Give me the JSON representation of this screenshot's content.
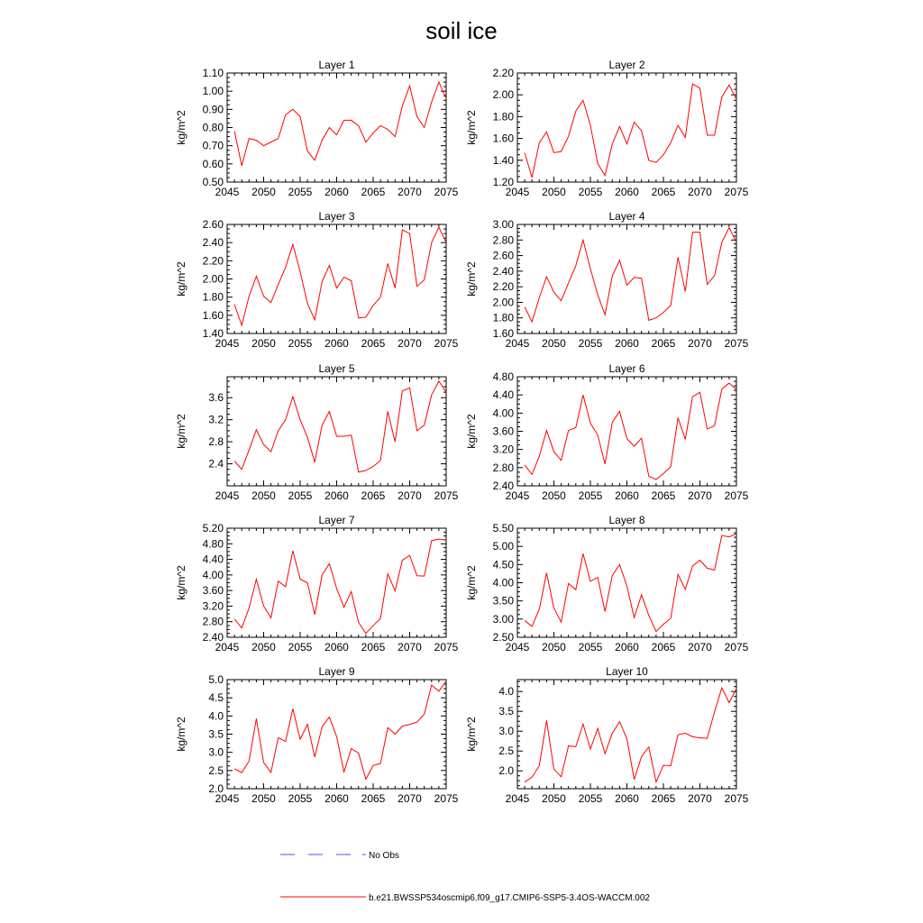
{
  "title": "soil ice",
  "colors": {
    "model": "#ff0000",
    "obs": "#4a4aff"
  },
  "legend": {
    "obs_label": "No Obs",
    "model_label": "b.e21.BWSSP534oscmip6.f09_g17.CMIP6-SSP5-3.4OS-WACCM.002"
  },
  "chart_data": {
    "type": "line",
    "x": [
      2046,
      2047,
      2048,
      2049,
      2050,
      2051,
      2052,
      2053,
      2054,
      2055,
      2056,
      2057,
      2058,
      2059,
      2060,
      2061,
      2062,
      2063,
      2064,
      2065,
      2066,
      2067,
      2068,
      2069,
      2070,
      2071,
      2072,
      2073,
      2074,
      2075
    ],
    "xlim": [
      2045,
      2075
    ],
    "xticks": [
      "2045",
      "2050",
      "2055",
      "2060",
      "2065",
      "2070",
      "2075"
    ],
    "panels": [
      {
        "title": "Layer 1",
        "ylabel": "kg/m^2",
        "ylim": [
          0.5,
          1.1
        ],
        "yticks": [
          "0.50",
          "0.60",
          "0.70",
          "0.80",
          "0.90",
          "1.00",
          "1.10"
        ],
        "values": [
          0.78,
          0.59,
          0.74,
          0.73,
          0.7,
          0.72,
          0.74,
          0.87,
          0.9,
          0.86,
          0.67,
          0.62,
          0.73,
          0.8,
          0.76,
          0.84,
          0.84,
          0.81,
          0.72,
          0.77,
          0.81,
          0.79,
          0.75,
          0.92,
          1.03,
          0.86,
          0.8,
          0.94,
          1.05,
          0.96
        ]
      },
      {
        "title": "Layer 2",
        "ylabel": "kg/m^2",
        "ylim": [
          1.2,
          2.2
        ],
        "yticks": [
          "1.20",
          "1.40",
          "1.60",
          "1.80",
          "2.00",
          "2.20"
        ],
        "values": [
          1.47,
          1.24,
          1.56,
          1.66,
          1.47,
          1.48,
          1.62,
          1.85,
          1.95,
          1.72,
          1.37,
          1.26,
          1.55,
          1.71,
          1.55,
          1.75,
          1.67,
          1.4,
          1.38,
          1.45,
          1.56,
          1.72,
          1.61,
          2.1,
          2.06,
          1.63,
          1.63,
          1.98,
          2.09,
          1.96
        ]
      },
      {
        "title": "Layer 3",
        "ylabel": "kg/m^2",
        "ylim": [
          1.4,
          2.6
        ],
        "yticks": [
          "1.40",
          "1.60",
          "1.80",
          "2.00",
          "2.20",
          "2.40",
          "2.60"
        ],
        "values": [
          1.72,
          1.49,
          1.81,
          2.03,
          1.81,
          1.74,
          1.94,
          2.13,
          2.38,
          2.08,
          1.73,
          1.55,
          1.97,
          2.15,
          1.9,
          2.02,
          1.98,
          1.57,
          1.58,
          1.71,
          1.8,
          2.17,
          1.9,
          2.54,
          2.5,
          1.92,
          1.99,
          2.4,
          2.57,
          2.4
        ]
      },
      {
        "title": "Layer 4",
        "ylabel": "kg/m^2",
        "ylim": [
          1.6,
          3.0
        ],
        "yticks": [
          "1.60",
          "1.80",
          "2.00",
          "2.20",
          "2.40",
          "2.60",
          "2.80",
          "3.00"
        ],
        "values": [
          1.94,
          1.75,
          2.06,
          2.33,
          2.13,
          2.02,
          2.25,
          2.47,
          2.8,
          2.43,
          2.1,
          1.84,
          2.34,
          2.54,
          2.22,
          2.32,
          2.31,
          1.77,
          1.8,
          1.87,
          1.96,
          2.58,
          2.14,
          2.9,
          2.9,
          2.23,
          2.34,
          2.77,
          2.96,
          2.77
        ]
      },
      {
        "title": "Layer 5",
        "ylabel": "kg/m^2",
        "ylim": [
          2.0,
          3.98
        ],
        "yticks": [
          "2.4",
          "2.8",
          "3.2",
          "3.6"
        ],
        "values": [
          2.45,
          2.3,
          2.65,
          3.02,
          2.75,
          2.62,
          3.0,
          3.2,
          3.62,
          3.2,
          2.88,
          2.43,
          3.1,
          3.35,
          2.9,
          2.9,
          2.92,
          2.25,
          2.28,
          2.35,
          2.46,
          3.35,
          2.8,
          3.72,
          3.78,
          3.0,
          3.1,
          3.65,
          3.9,
          3.7
        ]
      },
      {
        "title": "Layer 6",
        "ylabel": "kg/m^2",
        "ylim": [
          2.4,
          4.8
        ],
        "yticks": [
          "2.40",
          "2.80",
          "3.20",
          "3.60",
          "4.00",
          "4.40",
          "4.80"
        ],
        "values": [
          2.86,
          2.65,
          3.05,
          3.62,
          3.15,
          2.96,
          3.62,
          3.68,
          4.4,
          3.78,
          3.52,
          2.88,
          3.8,
          4.04,
          3.44,
          3.27,
          3.45,
          2.61,
          2.54,
          2.67,
          2.82,
          3.9,
          3.42,
          4.36,
          4.46,
          3.65,
          3.72,
          4.53,
          4.66,
          4.52
        ]
      },
      {
        "title": "Layer 7",
        "ylabel": "kg/m^2",
        "ylim": [
          2.4,
          5.2
        ],
        "yticks": [
          "2.40",
          "2.80",
          "3.20",
          "3.60",
          "4.00",
          "4.40",
          "4.80",
          "5.20"
        ],
        "values": [
          2.87,
          2.64,
          3.15,
          3.89,
          3.2,
          2.9,
          3.84,
          3.7,
          4.62,
          3.89,
          3.8,
          2.98,
          4.0,
          4.29,
          3.65,
          3.17,
          3.57,
          2.78,
          2.5,
          2.7,
          2.88,
          4.03,
          3.59,
          4.38,
          4.5,
          3.98,
          3.97,
          4.88,
          4.92,
          4.9
        ]
      },
      {
        "title": "Layer 8",
        "ylabel": "kg/m^2",
        "ylim": [
          2.5,
          5.5
        ],
        "yticks": [
          "2.50",
          "3.00",
          "3.50",
          "4.00",
          "4.50",
          "5.00",
          "5.50"
        ],
        "values": [
          2.96,
          2.8,
          3.27,
          4.27,
          3.3,
          2.92,
          3.98,
          3.81,
          4.8,
          4.04,
          4.15,
          3.21,
          4.2,
          4.5,
          3.91,
          3.04,
          3.67,
          3.1,
          2.66,
          2.86,
          3.02,
          4.23,
          3.82,
          4.46,
          4.62,
          4.4,
          4.35,
          5.3,
          5.26,
          5.35
        ]
      },
      {
        "title": "Layer 9",
        "ylabel": "kg/m^2",
        "ylim": [
          2.0,
          5.0
        ],
        "yticks": [
          "2.0",
          "2.5",
          "3.0",
          "3.5",
          "4.0",
          "4.5",
          "5.0"
        ],
        "values": [
          2.55,
          2.44,
          2.76,
          3.93,
          2.72,
          2.45,
          3.4,
          3.3,
          4.2,
          3.36,
          3.77,
          2.87,
          3.7,
          3.97,
          3.43,
          2.46,
          3.1,
          2.98,
          2.26,
          2.64,
          2.69,
          3.68,
          3.5,
          3.72,
          3.77,
          3.83,
          4.05,
          4.85,
          4.68,
          4.96
        ]
      },
      {
        "title": "Layer 10",
        "ylabel": "kg/m^2",
        "ylim": [
          1.55,
          4.3
        ],
        "yticks": [
          "2.0",
          "2.5",
          "3.0",
          "3.5",
          "4.0"
        ],
        "values": [
          1.72,
          1.84,
          2.13,
          3.27,
          2.04,
          1.85,
          2.63,
          2.61,
          3.18,
          2.55,
          3.07,
          2.43,
          2.95,
          3.24,
          2.81,
          1.78,
          2.36,
          2.6,
          1.72,
          2.14,
          2.13,
          2.91,
          2.95,
          2.86,
          2.83,
          2.82,
          3.49,
          4.09,
          3.72,
          4.07
        ]
      }
    ]
  }
}
